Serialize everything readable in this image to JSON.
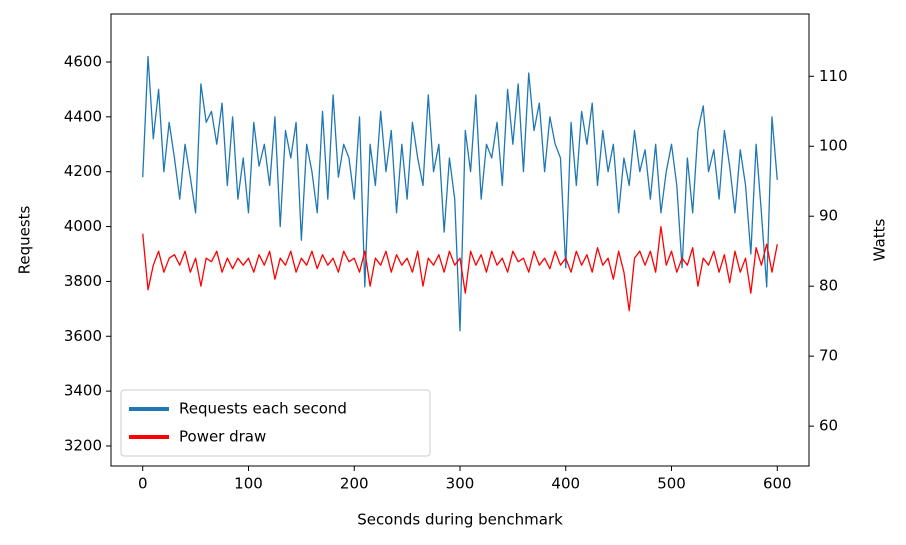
{
  "chart_data": {
    "type": "line",
    "xlabel": "Seconds during benchmark",
    "ylabel": "Requests",
    "y2label": "Watts",
    "x": [
      0,
      5,
      10,
      15,
      20,
      25,
      30,
      35,
      40,
      45,
      50,
      55,
      60,
      65,
      70,
      75,
      80,
      85,
      90,
      95,
      100,
      105,
      110,
      115,
      120,
      125,
      130,
      135,
      140,
      145,
      150,
      155,
      160,
      165,
      170,
      175,
      180,
      185,
      190,
      195,
      200,
      205,
      210,
      215,
      220,
      225,
      230,
      235,
      240,
      245,
      250,
      255,
      260,
      265,
      270,
      275,
      280,
      285,
      290,
      295,
      300,
      305,
      310,
      315,
      320,
      325,
      330,
      335,
      340,
      345,
      350,
      355,
      360,
      365,
      370,
      375,
      380,
      385,
      390,
      395,
      400,
      405,
      410,
      415,
      420,
      425,
      430,
      435,
      440,
      445,
      450,
      455,
      460,
      465,
      470,
      475,
      480,
      485,
      490,
      495,
      500,
      505,
      510,
      515,
      520,
      525,
      530,
      535,
      540,
      545,
      550,
      555,
      560,
      565,
      570,
      575,
      580,
      585,
      590,
      595,
      600
    ],
    "series": [
      {
        "name": "Requests each second",
        "color": "#1f77b4",
        "values": [
          4180,
          4620,
          4320,
          4500,
          4200,
          4380,
          4250,
          4100,
          4300,
          4180,
          4050,
          4520,
          4380,
          4420,
          4300,
          4450,
          4150,
          4400,
          4100,
          4250,
          4050,
          4380,
          4220,
          4300,
          4150,
          4400,
          4000,
          4350,
          4250,
          4380,
          3950,
          4300,
          4200,
          4050,
          4420,
          4100,
          4480,
          4180,
          4300,
          4250,
          4100,
          4400,
          3780,
          4300,
          4150,
          4420,
          4200,
          4350,
          4050,
          4300,
          4100,
          4380,
          4250,
          4150,
          4480,
          4200,
          4300,
          3980,
          4250,
          4100,
          3620,
          4350,
          4200,
          4480,
          4100,
          4300,
          4250,
          4380,
          4150,
          4500,
          4300,
          4520,
          4200,
          4560,
          4350,
          4450,
          4200,
          4400,
          4300,
          4250,
          3850,
          4380,
          4150,
          4420,
          4300,
          4450,
          4150,
          4350,
          4200,
          4300,
          4050,
          4250,
          4150,
          4350,
          4200,
          4280,
          4100,
          4300,
          4050,
          4200,
          4300,
          4150,
          3850,
          4250,
          4050,
          4350,
          4440,
          4200,
          4280,
          4100,
          4350,
          4220,
          4050,
          4280,
          4150,
          3900,
          4300,
          4050,
          3780,
          4400,
          4170
        ]
      },
      {
        "name": "Power draw",
        "color": "#ff0000",
        "axis": "y2",
        "values": [
          87.5,
          79.5,
          83,
          85,
          82,
          84,
          84.5,
          83,
          85,
          82,
          84,
          80,
          84,
          83.5,
          85,
          82,
          84,
          82.5,
          84,
          83,
          84,
          82,
          84.5,
          83,
          85,
          81,
          84,
          83,
          85,
          82,
          84,
          83,
          85,
          82.5,
          84.5,
          83,
          84,
          82,
          85,
          83.5,
          84,
          82,
          85,
          80,
          84,
          83,
          85,
          82,
          84.5,
          83,
          84,
          82,
          85,
          80,
          84,
          83,
          84.5,
          82,
          85,
          83,
          84,
          79,
          85,
          83,
          84.5,
          82,
          85,
          83,
          84,
          82,
          85,
          83.5,
          84,
          82,
          85,
          83,
          84,
          82.5,
          85,
          83,
          84,
          82,
          85,
          83,
          84.5,
          82,
          85.5,
          83,
          84,
          81,
          85,
          82,
          76.5,
          84,
          85,
          83,
          85,
          82,
          88.5,
          83,
          85,
          82,
          84,
          83,
          85.5,
          80,
          84,
          83,
          85,
          82,
          84.5,
          80.5,
          85,
          82,
          84,
          79,
          85.5,
          83,
          86,
          82,
          86
        ]
      }
    ],
    "xlim": [
      -30,
      630
    ],
    "xticks": [
      0,
      100,
      200,
      300,
      400,
      500,
      600
    ],
    "ylim": [
      3127,
      4775
    ],
    "yticks": [
      3200,
      3400,
      3600,
      3800,
      4000,
      4200,
      4400,
      4600
    ],
    "y2lim": [
      54.3,
      118.9
    ],
    "y2ticks": [
      60,
      70,
      80,
      90,
      100,
      110
    ],
    "legend": "lower left"
  }
}
